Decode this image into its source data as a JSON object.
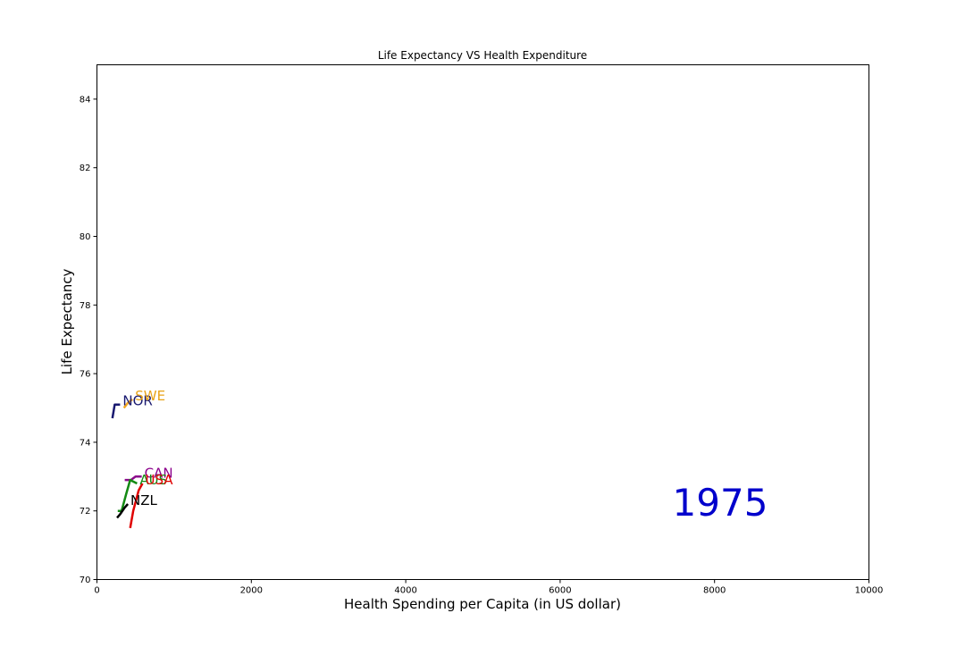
{
  "chart_data": {
    "type": "line",
    "title": "Life Expectancy VS Health Expenditure",
    "xlabel": "Health Spending per Capita (in US dollar)",
    "ylabel": "Life Expectancy",
    "xlim": [
      0,
      10000
    ],
    "ylim": [
      70,
      85
    ],
    "xticks": [
      0,
      2000,
      4000,
      6000,
      8000,
      10000
    ],
    "yticks": [
      70,
      72,
      74,
      76,
      78,
      80,
      82,
      84
    ],
    "grid": false,
    "year_label": "1975",
    "year_label_color": "#0000cc",
    "series": [
      {
        "name": "NOR",
        "color": "#191970",
        "label_color": "#191970",
        "x": [
          200,
          230,
          300
        ],
        "y": [
          74.7,
          75.1,
          75.1
        ]
      },
      {
        "name": "SWE",
        "color": "#f4a81d",
        "label_color": "#e8a317",
        "x": [
          350,
          400,
          460
        ],
        "y": [
          75.0,
          75.15,
          75.25
        ]
      },
      {
        "name": "CAN",
        "color": "#8b0a8b",
        "label_color": "#8b008b",
        "x": [
          360,
          440,
          500,
          580
        ],
        "y": [
          72.9,
          72.9,
          73.0,
          73.0
        ]
      },
      {
        "name": "AUS",
        "color": "#138a13",
        "label_color": "#138a13",
        "x": [
          270,
          320,
          380,
          430,
          520
        ],
        "y": [
          72.0,
          72.0,
          72.5,
          72.9,
          72.8
        ]
      },
      {
        "name": "USA",
        "color": "#e00000",
        "label_color": "#e00000",
        "x": [
          430,
          470,
          540,
          590
        ],
        "y": [
          71.5,
          72.0,
          72.6,
          72.8
        ]
      },
      {
        "name": "NZL",
        "color": "#000000",
        "label_color": "#000000",
        "x": [
          260,
          300,
          360,
          400
        ],
        "y": [
          71.8,
          71.9,
          72.1,
          72.2
        ]
      }
    ]
  }
}
